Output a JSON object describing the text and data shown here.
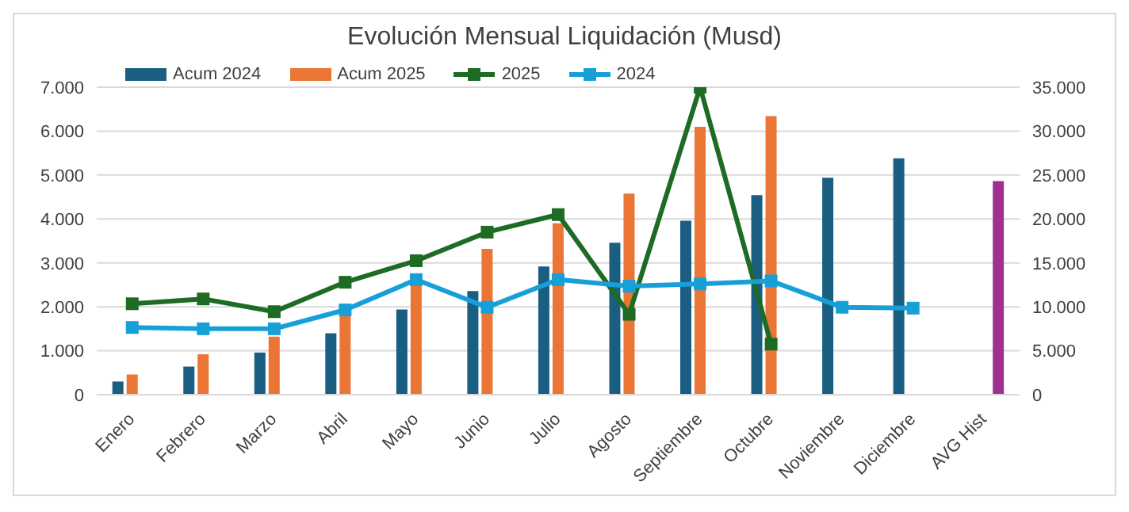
{
  "chart_data": {
    "type": "bar",
    "title": "Evolución Mensual Liquidación (Musd)",
    "categories": [
      "Enero",
      "Febrero",
      "Marzo",
      "Abril",
      "Mayo",
      "Junio",
      "Julio",
      "Agosto",
      "Septiembre",
      "Octubre",
      "Noviembre",
      "Diciembre",
      "AVG Hist"
    ],
    "series": [
      {
        "name": "Acum 2024",
        "axis": "y2",
        "color": "#1a5e82",
        "values": [
          1500,
          3200,
          4800,
          7000,
          9700,
          11800,
          14600,
          17300,
          19800,
          22700,
          24700,
          26900,
          null
        ]
      },
      {
        "name": "Acum 2025",
        "axis": "y2",
        "color": "#ea7535",
        "values": [
          2300,
          4600,
          6600,
          9400,
          12800,
          16600,
          19500,
          22900,
          30500,
          31700,
          null,
          null,
          null
        ]
      },
      {
        "axis": "y2",
        "color": "#a0308f",
        "values": [
          null,
          null,
          null,
          null,
          null,
          null,
          null,
          null,
          null,
          null,
          null,
          null,
          24300
        ]
      },
      {
        "name": "2025",
        "type": "line",
        "color": "#1e6b24",
        "values": [
          2070,
          2180,
          1890,
          2560,
          3050,
          3700,
          4100,
          1830,
          7000,
          1150,
          null,
          null,
          null
        ]
      },
      {
        "name": "2024",
        "type": "line",
        "color": "#17a0d8",
        "values": [
          1530,
          1500,
          1500,
          1930,
          2620,
          1990,
          2620,
          2470,
          2520,
          2590,
          1990,
          1970,
          null
        ]
      }
    ],
    "ylim": [
      0,
      7000
    ],
    "yticks": [
      0,
      {
        "value": 1000,
        "label": "1.000"
      },
      {
        "value": 2000,
        "label": "2.000"
      },
      {
        "value": 3000,
        "label": "3.000"
      },
      {
        "value": 4000,
        "label": "4.000"
      },
      {
        "value": 5000,
        "label": "5.000"
      },
      {
        "value": 6000,
        "label": "6.000"
      },
      {
        "value": 7000,
        "label": "7.000"
      }
    ],
    "y2lim": [
      0,
      35000
    ],
    "y2ticks": [
      0,
      {
        "value": 5000,
        "label": "5.000"
      },
      {
        "value": 10000,
        "label": "10.000"
      },
      {
        "value": 15000,
        "label": "15.000"
      },
      {
        "value": 20000,
        "label": "20.000"
      },
      {
        "value": 25000,
        "label": "25.000"
      },
      {
        "value": 30000,
        "label": "30.000"
      },
      {
        "value": 35000,
        "label": "35.000"
      }
    ],
    "grid": "y",
    "legend": "top left",
    "marker": "square",
    "line_style": "solid"
  }
}
